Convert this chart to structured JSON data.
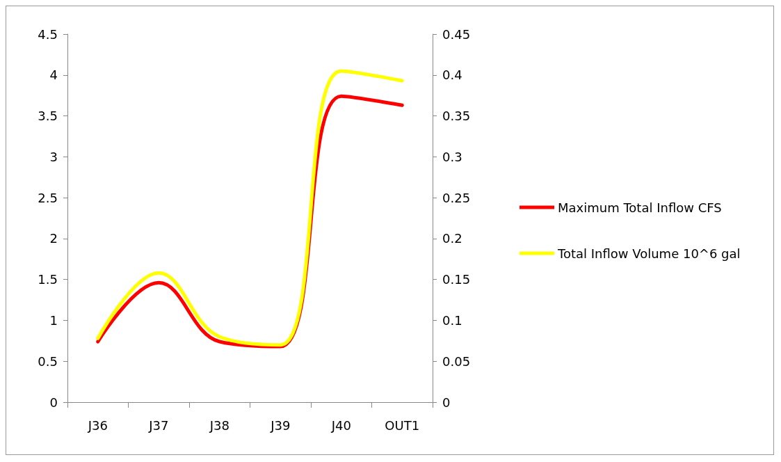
{
  "chart_data": {
    "type": "line",
    "categories": [
      "J36",
      "J37",
      "J38",
      "J39",
      "J40",
      "OUT1"
    ],
    "series": [
      {
        "name": "Maximum Total Inflow CFS",
        "color": "#ff0000",
        "values": [
          0.74,
          1.46,
          0.74,
          0.68,
          3.74,
          3.63
        ]
      },
      {
        "name": "Total Inflow Volume 10^6 gal",
        "color": "#ffff00",
        "axis": "y2",
        "values": [
          0.078,
          0.158,
          0.08,
          0.07,
          0.405,
          0.393
        ]
      }
    ],
    "ylim": [
      0,
      4.5
    ],
    "yticks": [
      0,
      0.5,
      1,
      1.5,
      2,
      2.5,
      3,
      3.5,
      4,
      4.5
    ],
    "y2lim": [
      0,
      0.45
    ],
    "y2ticks": [
      0,
      0.05,
      0.1,
      0.15,
      0.2,
      0.25,
      0.3,
      0.35,
      0.4,
      0.45
    ],
    "grid": false,
    "legend": "right",
    "marker": "none",
    "line_style": "solid"
  }
}
